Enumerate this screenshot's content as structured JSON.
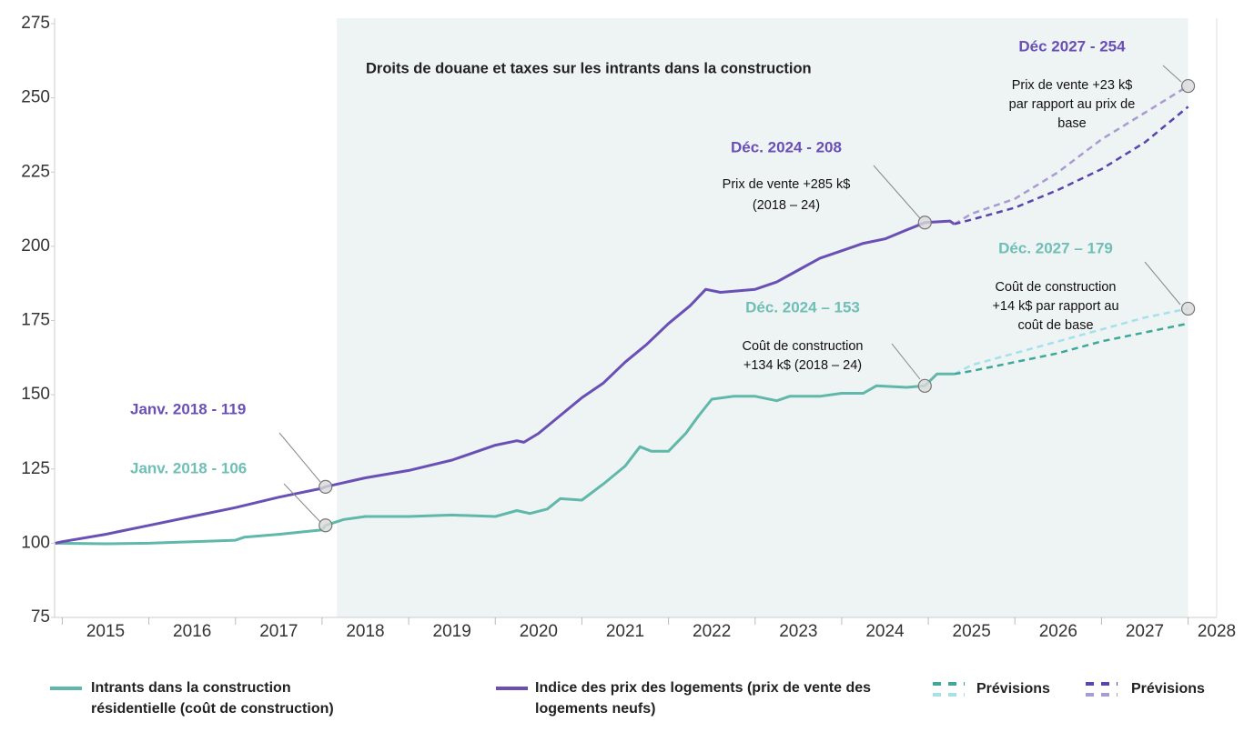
{
  "chart_data": {
    "type": "line",
    "title": "Droits de douane et taxes sur les intrants dans la construction",
    "xlim": [
      2014.88,
      2028.33
    ],
    "xticks": [
      2015,
      2016,
      2017,
      2018,
      2019,
      2020,
      2021,
      2022,
      2023,
      2024,
      2025,
      2026,
      2027,
      2028
    ],
    "ylim": [
      75,
      275
    ],
    "yticks": [
      75,
      100,
      125,
      150,
      175,
      200,
      225,
      250,
      275
    ],
    "shade": [
      2018.17,
      2028
    ],
    "shade_color": "#eef3f4",
    "series": [
      {
        "name": "Intrants dans la construction résidentielle (coût de construction)",
        "color": "#5fb8aa",
        "x": [
          2014.92,
          2015.5,
          2016,
          2016.5,
          2017,
          2017.1,
          2017.5,
          2018,
          2018.04,
          2018.25,
          2018.5,
          2019,
          2019.5,
          2020,
          2020.25,
          2020.4,
          2020.6,
          2020.75,
          2021,
          2021.25,
          2021.5,
          2021.67,
          2021.8,
          2022,
          2022.2,
          2022.35,
          2022.5,
          2022.75,
          2023,
          2023.25,
          2023.4,
          2023.75,
          2024,
          2024.25,
          2024.4,
          2024.75,
          2024.96,
          2025.1,
          2025.3
        ],
        "values": [
          100,
          99.8,
          100,
          100.5,
          101,
          102,
          103,
          104.5,
          106,
          108,
          109,
          109,
          109.5,
          109,
          111,
          110,
          111.5,
          115,
          114.5,
          120,
          126,
          132.5,
          131,
          131,
          137,
          143,
          148.5,
          149.5,
          149.5,
          148,
          149.5,
          149.5,
          150.5,
          150.5,
          153,
          152.5,
          153,
          157,
          157
        ]
      },
      {
        "name": "Indice des prix des logements (prix de vente des logements neufs)",
        "color": "#6a4fb5",
        "x": [
          2014.92,
          2015,
          2015.5,
          2016,
          2016.5,
          2017,
          2017.5,
          2018,
          2018.04,
          2018.5,
          2019,
          2019.5,
          2020,
          2020.25,
          2020.33,
          2020.5,
          2020.75,
          2021,
          2021.25,
          2021.5,
          2021.75,
          2022,
          2022.25,
          2022.43,
          2022.6,
          2023,
          2023.25,
          2023.5,
          2023.75,
          2024,
          2024.25,
          2024.5,
          2024.75,
          2024.96,
          2025.25,
          2025.3
        ],
        "values": [
          100,
          100.5,
          103,
          106,
          109,
          112,
          115.5,
          118.5,
          119,
          122,
          124.5,
          128,
          133,
          134.5,
          134,
          137,
          143,
          149,
          154,
          161,
          167,
          174,
          180,
          185.5,
          184.5,
          185.5,
          188,
          192,
          196,
          198.5,
          201,
          202.5,
          205.5,
          208,
          208.5,
          207.5
        ]
      },
      {
        "name": "Prévisions",
        "color": "#3fa898",
        "alt_color": "#a6e0ea",
        "dashed": true,
        "x": [
          2025.3,
          2025.5,
          2026,
          2026.5,
          2027,
          2027.5,
          2028
        ],
        "values": [
          157,
          158,
          161,
          164,
          168,
          171,
          174
        ],
        "alt_values": [
          157,
          160,
          164,
          168,
          172,
          176,
          179
        ]
      },
      {
        "name": "Prévisions",
        "color": "#5a45ad",
        "alt_color": "#a99bd3",
        "dashed": true,
        "x": [
          2025.3,
          2025.5,
          2026,
          2026.5,
          2027,
          2027.5,
          2028
        ],
        "values": [
          207.5,
          209,
          213,
          219,
          226,
          235,
          247
        ],
        "alt_values": [
          207.5,
          211,
          216,
          225,
          236,
          245,
          254
        ]
      }
    ],
    "annotations": [
      {
        "title": "Déc 2027 - 254",
        "body": [
          "Prix de vente +23 k$",
          "par rapport au prix de",
          "base"
        ]
      },
      {
        "title": "Déc. 2024 - 208",
        "body": [
          "Prix de vente +285 k$",
          "(2018 – 24)"
        ]
      },
      {
        "title": "Déc. 2027 – 179",
        "body": [
          "Coût de construction",
          "+14 k$ par rapport au",
          "coût de base"
        ]
      },
      {
        "title": "Déc. 2024 – 153",
        "body": [
          "Coût de construction",
          "+134 k$ (2018 – 24)"
        ]
      },
      {
        "title": "Janv. 2018 - 119"
      },
      {
        "title": "Janv. 2018 - 106"
      }
    ]
  }
}
